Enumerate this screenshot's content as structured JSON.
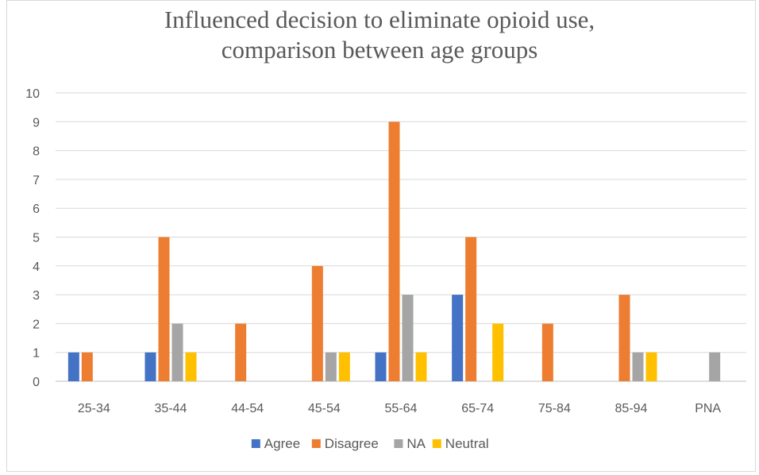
{
  "chart_data": {
    "type": "bar",
    "title_lines": [
      "Influenced decision to eliminate opioid use,",
      "comparison between age groups"
    ],
    "categories": [
      "25-34",
      "35-44",
      "44-54",
      "45-54",
      "55-64",
      "65-74",
      "75-84",
      "85-94",
      "PNA"
    ],
    "series": [
      {
        "name": "Agree",
        "color": "#4472C4",
        "values": [
          1,
          1,
          0,
          0,
          1,
          3,
          0,
          0,
          0
        ]
      },
      {
        "name": "Disagree",
        "color": "#ED7D31",
        "values": [
          1,
          5,
          2,
          4,
          9,
          5,
          2,
          3,
          0
        ]
      },
      {
        "name": "NA",
        "color": "#A5A5A5",
        "values": [
          0,
          2,
          0,
          1,
          3,
          0,
          0,
          1,
          1
        ]
      },
      {
        "name": "Neutral",
        "color": "#FFC000",
        "values": [
          0,
          1,
          0,
          1,
          1,
          2,
          0,
          1,
          0
        ]
      }
    ],
    "ylim": [
      0,
      10
    ],
    "yticks": [
      "0",
      "1",
      "2",
      "3",
      "4",
      "5",
      "6",
      "7",
      "8",
      "9",
      "10"
    ],
    "xlabel": "",
    "ylabel": "",
    "grid": true,
    "legend_position": "bottom"
  }
}
